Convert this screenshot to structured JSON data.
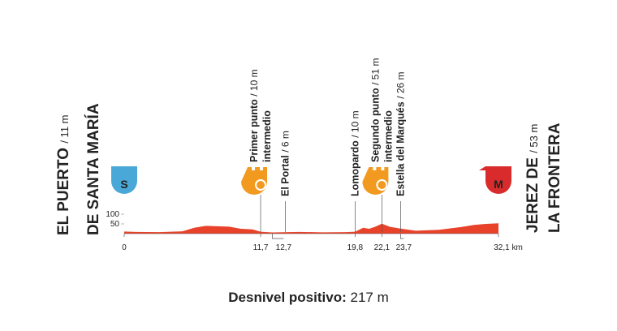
{
  "chart_data": {
    "type": "area",
    "color": "#e8432a",
    "x": [
      0,
      1,
      3,
      5,
      6,
      7,
      8,
      9,
      10,
      11,
      11.7,
      12.7,
      14,
      15,
      17,
      19,
      19.8,
      20.5,
      21,
      21.5,
      22.1,
      22.8,
      23.7,
      25,
      27,
      29,
      30,
      31,
      32.1
    ],
    "values": [
      11,
      9,
      8,
      12,
      30,
      40,
      38,
      36,
      25,
      22,
      10,
      6,
      8,
      9,
      7,
      8,
      10,
      30,
      25,
      35,
      51,
      35,
      26,
      15,
      20,
      35,
      45,
      50,
      53
    ],
    "xlim": [
      0,
      32.1
    ],
    "ylim": [
      0,
      300
    ],
    "yticks": [
      50,
      100
    ],
    "xticks": [
      0,
      {
        "value": 11.7,
        "label": "11,7"
      },
      {
        "value": 12.7,
        "label": "12,7"
      },
      {
        "value": 19.8,
        "label": "19,8"
      },
      {
        "value": 22.1,
        "label": "22,1"
      },
      {
        "value": 23.7,
        "label": "23,7"
      },
      {
        "value": 32.1,
        "label": "32,1 km"
      }
    ],
    "start": {
      "icon": "S",
      "lines": [
        "EL PUERTO",
        "DE SANTA MARÍA"
      ],
      "elevation": "/ 11 m"
    },
    "finish": {
      "icon": "M",
      "lines": [
        "JEREZ DE",
        "LA FRONTERA"
      ],
      "elevation": "/ 53 m"
    },
    "waypoints": [
      {
        "lines": [
          "Primer punto",
          "intermedio"
        ],
        "elevation": "/ 10 m",
        "tick": 1,
        "sprint": true
      },
      {
        "lines": [
          "El Portal"
        ],
        "elevation": "/ 6 m",
        "tick": 2,
        "sprint": false
      },
      {
        "lines": [
          "Lomopardo"
        ],
        "elevation": "/ 10 m",
        "tick": 3,
        "sprint": false
      },
      {
        "lines": [
          "Segundo punto",
          "intermedio"
        ],
        "elevation": "/ 51 m",
        "tick": 4,
        "sprint": true
      },
      {
        "lines": [
          "Estella del Marqués"
        ],
        "elevation": "/ 26 m",
        "tick": 5,
        "sprint": false
      }
    ],
    "footer": {
      "label": "Desnivel positivo:",
      "value": "217 m"
    }
  }
}
